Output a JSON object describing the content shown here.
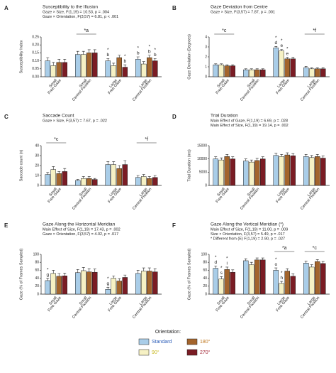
{
  "legend": {
    "title": "Orientation:",
    "items": [
      {
        "name": "Standard",
        "color": "#a9cde8",
        "label_color": "#2a5cb8"
      },
      {
        "name": "90°",
        "color": "#f6f1c4",
        "label_color": "#c8b820"
      },
      {
        "name": "180°",
        "color": "#a3642c",
        "label_color": "#c07820"
      },
      {
        "name": "270°",
        "color": "#7a1c24",
        "label_color": "#a02030"
      }
    ]
  },
  "chart_data": [
    {
      "type": "bar",
      "letter": "A",
      "title": "Susceptibility to the Illusion",
      "subtitle": [
        "Gaze × Size, F(1,19) = 10.53, p = .004",
        "Gaze × Orientation, F(3,57) = 6.81, p < .001"
      ],
      "ylabel": "Susceptibility Index",
      "categories": [
        [
          "Small",
          "Free Gaze"
        ],
        [
          "Small",
          "Central Fixation"
        ],
        [
          "Large",
          "Free Gaze"
        ],
        [
          "Large",
          "Central Fixation"
        ]
      ],
      "ylim": [
        0,
        0.25
      ],
      "yticks": [
        {
          "value": 0,
          "label": "0.00"
        },
        {
          "value": 0.05,
          "label": "0.05"
        },
        {
          "value": 0.1,
          "label": "0.10"
        },
        {
          "value": 0.15,
          "label": "0.15"
        },
        {
          "value": 0.2,
          "label": "0.20"
        },
        {
          "value": 0.25,
          "label": "0.25"
        }
      ],
      "group_marks": [
        null,
        "*a",
        null,
        null
      ],
      "series": [
        {
          "values": [
            0.1,
            0.14,
            0.1,
            0.11
          ],
          "errors": [
            0.02,
            0.02,
            0.015,
            0.015
          ],
          "marks": [
            null,
            null,
            [
              "*",
              "b"
            ],
            [
              "*",
              "b"
            ]
          ]
        },
        {
          "values": [
            0.07,
            0.14,
            0.07,
            0.08
          ],
          "errors": [
            0.02,
            0.02,
            0.015,
            0.015
          ],
          "marks": [
            null,
            null,
            null,
            null
          ]
        },
        {
          "values": [
            0.09,
            0.15,
            0.12,
            0.12
          ],
          "errors": [
            0.02,
            0.02,
            0.015,
            0.015
          ],
          "marks": [
            null,
            null,
            null,
            [
              "*",
              "b"
            ]
          ]
        },
        {
          "values": [
            0.09,
            0.15,
            0.06,
            0.1
          ],
          "errors": [
            0.02,
            0.02,
            0.015,
            0.015
          ],
          "marks": [
            null,
            null,
            [
              "*",
              "b"
            ],
            [
              "*",
              "b"
            ]
          ]
        }
      ]
    },
    {
      "type": "bar",
      "letter": "B",
      "title": "Gaze Deviation from Centre",
      "subtitle": [
        "Gaze × Size, F(3,57) = 7.87, p = .001"
      ],
      "ylabel": "Gaze Deviation (Degrees)",
      "categories": [
        [
          "Small",
          "Free Gaze"
        ],
        [
          "Small",
          "Central Fixation"
        ],
        [
          "Large",
          "Free Gaze"
        ],
        [
          "Large",
          "Central Fixation"
        ]
      ],
      "ylim": [
        0,
        4
      ],
      "yticks": [
        0,
        1,
        2,
        3,
        4
      ],
      "group_marks": [
        "*c",
        null,
        null,
        "*f"
      ],
      "series": [
        {
          "values": [
            1.2,
            0.7,
            2.9,
            0.9
          ],
          "errors": [
            0.1,
            0.1,
            0.15,
            0.15
          ],
          "marks": [
            null,
            null,
            [
              "*",
              "d"
            ],
            null
          ]
        },
        {
          "values": [
            1.2,
            0.7,
            2.6,
            0.8
          ],
          "errors": [
            0.1,
            0.1,
            0.15,
            0.1
          ],
          "marks": [
            null,
            null,
            [
              "*",
              "e"
            ],
            null
          ]
        },
        {
          "values": [
            1.1,
            0.7,
            1.8,
            0.8
          ],
          "errors": [
            0.1,
            0.1,
            0.15,
            0.1
          ],
          "marks": [
            null,
            null,
            [
              "*",
              "e"
            ],
            null
          ]
        },
        {
          "values": [
            1.1,
            0.7,
            1.8,
            0.8
          ],
          "errors": [
            0.1,
            0.1,
            0.15,
            0.1
          ],
          "marks": [
            null,
            null,
            null,
            null
          ]
        }
      ]
    },
    {
      "type": "bar",
      "letter": "C",
      "title": "Saccade Count",
      "subtitle": [
        "Gaze × Size, F(3,57) = 7.67, p = .022"
      ],
      "ylabel": "Saccade count (n)",
      "categories": [
        [
          "Small",
          "Free Gaze"
        ],
        [
          "Small",
          "Central Fixation"
        ],
        [
          "Large",
          "Free Gaze"
        ],
        [
          "Large",
          "Central Fixation"
        ]
      ],
      "ylim": [
        0,
        40
      ],
      "yticks": [
        0,
        10,
        20,
        30,
        40
      ],
      "group_marks": [
        "*c",
        null,
        null,
        "*f"
      ],
      "series": [
        {
          "values": [
            11,
            5,
            21,
            8
          ],
          "errors": [
            2,
            1,
            3,
            2
          ],
          "marks": [
            null,
            null,
            null,
            null
          ]
        },
        {
          "values": [
            16,
            7,
            21,
            9
          ],
          "errors": [
            3,
            2,
            3,
            2
          ],
          "marks": [
            null,
            null,
            null,
            null
          ]
        },
        {
          "values": [
            12,
            7,
            17,
            7
          ],
          "errors": [
            2,
            2,
            3,
            2
          ],
          "marks": [
            null,
            null,
            null,
            null
          ]
        },
        {
          "values": [
            14,
            6,
            21,
            8
          ],
          "errors": [
            3,
            1,
            4,
            2
          ],
          "marks": [
            null,
            null,
            null,
            null
          ]
        }
      ]
    },
    {
      "type": "bar",
      "letter": "D",
      "title": "Trial  Duration",
      "subtitle": [
        "Main Effect of Gaze, F(1,19) = 6.69, p = .028",
        "Main Effect of Size, F(1,19) = 19.14, p = .002"
      ],
      "ylabel": "Trial Duration (ms)",
      "categories": [
        [
          "Small",
          "Free Gaze"
        ],
        [
          "Small",
          "Central Fixation"
        ],
        [
          "Large",
          "Free Gaze"
        ],
        [
          "Large",
          "Central Fixation"
        ]
      ],
      "ylim": [
        0,
        15000
      ],
      "yticks": [
        0,
        5000,
        10000,
        15000
      ],
      "group_marks": [
        null,
        null,
        null,
        null
      ],
      "series": [
        {
          "values": [
            10000,
            9200,
            11300,
            10900
          ],
          "errors": [
            800,
            800,
            800,
            800
          ],
          "marks": [
            null,
            null,
            null,
            null
          ]
        },
        {
          "values": [
            9600,
            8800,
            10900,
            10500
          ],
          "errors": [
            800,
            800,
            800,
            800
          ],
          "marks": [
            null,
            null,
            null,
            null
          ]
        },
        {
          "values": [
            10900,
            9400,
            11500,
            10900
          ],
          "errors": [
            800,
            800,
            800,
            800
          ],
          "marks": [
            null,
            null,
            null,
            null
          ]
        },
        {
          "values": [
            10000,
            10000,
            11200,
            10300
          ],
          "errors": [
            800,
            800,
            800,
            800
          ],
          "marks": [
            null,
            null,
            null,
            null
          ]
        }
      ]
    },
    {
      "type": "bar",
      "letter": "E",
      "title": "Gaze Along the Horizontal Meridian",
      "subtitle": [
        "Main Effect of Size, F(1,19) = 17.43, p = .002",
        "Gaze × Orientation, F(3,57) = 4.02, p = .017"
      ],
      "ylabel": "Gaze (% of Frames Sampled)",
      "categories": [
        [
          "Small",
          "Free Gaze"
        ],
        [
          "Small",
          "Central Fixation"
        ],
        [
          "Large",
          "Free Gaze"
        ],
        [
          "Large",
          "Central Fixation"
        ]
      ],
      "ylim": [
        0,
        100
      ],
      "yticks": [
        0,
        20,
        40,
        60,
        80,
        100
      ],
      "group_marks": [
        null,
        null,
        null,
        null
      ],
      "series": [
        {
          "values": [
            34,
            54,
            12,
            52
          ],
          "errors": [
            6,
            8,
            5,
            8
          ],
          "marks": [
            [
              "*",
              "g"
            ],
            null,
            [
              "*",
              "g"
            ],
            null
          ]
        },
        {
          "values": [
            52,
            59,
            40,
            58
          ],
          "errors": [
            8,
            8,
            6,
            8
          ],
          "marks": [
            null,
            null,
            null,
            null
          ]
        },
        {
          "values": [
            45,
            56,
            33,
            58
          ],
          "errors": [
            7,
            8,
            6,
            8
          ],
          "marks": [
            null,
            null,
            null,
            null
          ]
        },
        {
          "values": [
            46,
            55,
            42,
            56
          ],
          "errors": [
            7,
            8,
            6,
            8
          ],
          "marks": [
            null,
            null,
            null,
            null
          ]
        }
      ]
    },
    {
      "type": "bar",
      "letter": "F",
      "title": "Gaze Along the Vertical Meridian (*)",
      "subtitle": [
        "Main Effect of Size, F(1,19) = 11.00, p = .009",
        "Size × Orientation, F(3,57) = 5.49, p = .017",
        "* Different from (E) F(1,19) = 2.90, p = .027"
      ],
      "ylabel": "Gaze (% of Frames Sampled)",
      "categories": [
        [
          "Small",
          "Free Gaze"
        ],
        [
          "Small",
          "Central Fixation"
        ],
        [
          "Large",
          "Free Gaze"
        ],
        [
          "Large",
          "Central Fixation"
        ]
      ],
      "ylim": [
        0,
        100
      ],
      "yticks": [
        0,
        20,
        40,
        60,
        80,
        100
      ],
      "group_marks": [
        null,
        null,
        "*a",
        "*c"
      ],
      "series": [
        {
          "values": [
            65,
            84,
            60,
            78
          ],
          "errors": [
            6,
            5,
            6,
            5
          ],
          "marks": [
            [
              "*",
              "d"
            ],
            null,
            [
              "*",
              "o"
            ],
            null
          ]
        },
        {
          "values": [
            38,
            74,
            27,
            68
          ],
          "errors": [
            6,
            6,
            5,
            6
          ],
          "marks": [
            [
              "*",
              "s"
            ],
            null,
            [
              "*",
              "h"
            ],
            null
          ]
        },
        {
          "values": [
            62,
            86,
            58,
            82
          ],
          "errors": [
            6,
            5,
            6,
            5
          ],
          "marks": [
            [
              "*",
              "i"
            ],
            null,
            null,
            null
          ]
        },
        {
          "values": [
            55,
            86,
            45,
            77
          ],
          "errors": [
            6,
            5,
            6,
            5
          ],
          "marks": [
            null,
            null,
            null,
            null
          ]
        }
      ]
    }
  ]
}
